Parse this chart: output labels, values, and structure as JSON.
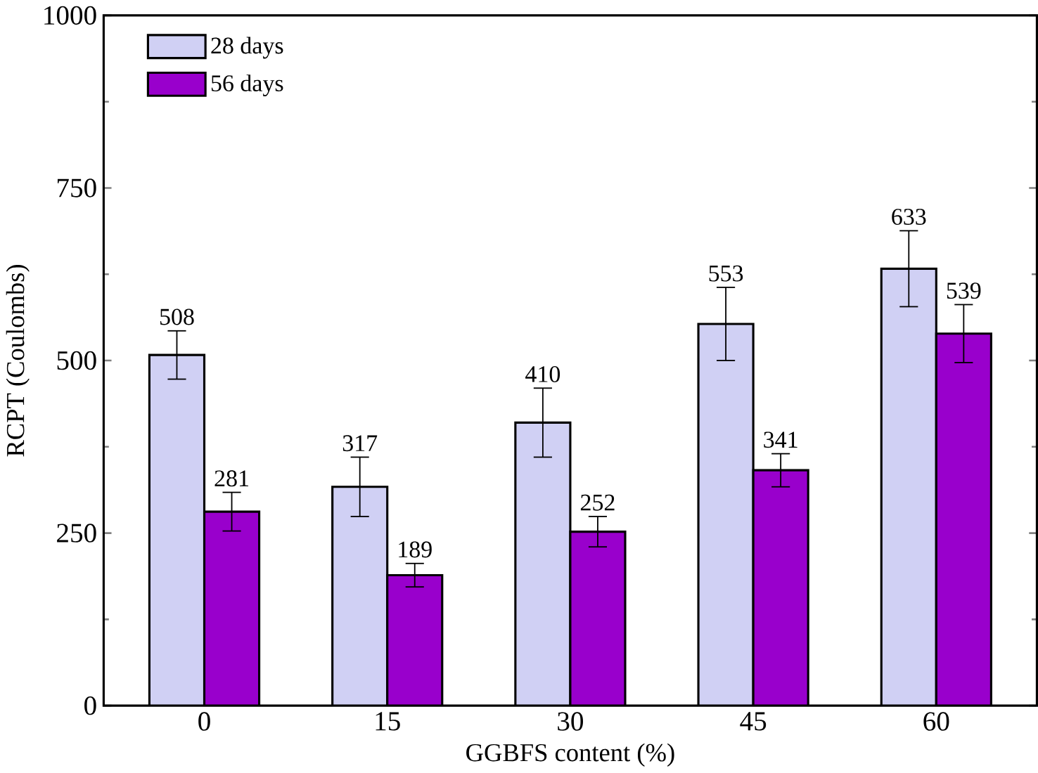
{
  "chart_data": {
    "type": "bar",
    "xlabel": "GGBFS content (%)",
    "ylabel": "RCPT (Coulombs)",
    "categories": [
      "0",
      "15",
      "30",
      "45",
      "60"
    ],
    "series": [
      {
        "name": "28 days",
        "color": "#d0d0f4",
        "values": [
          508,
          317,
          410,
          553,
          633
        ],
        "errors": [
          35,
          43,
          50,
          53,
          55
        ]
      },
      {
        "name": "56 days",
        "color": "#9900cc",
        "values": [
          281,
          189,
          252,
          341,
          539
        ],
        "errors": [
          28,
          17,
          22,
          24,
          42
        ]
      }
    ],
    "ylim": [
      0,
      1000
    ],
    "yticks": [
      0,
      250,
      500,
      750,
      1000
    ],
    "data_labels": true,
    "legend": "top left",
    "grid": false
  }
}
